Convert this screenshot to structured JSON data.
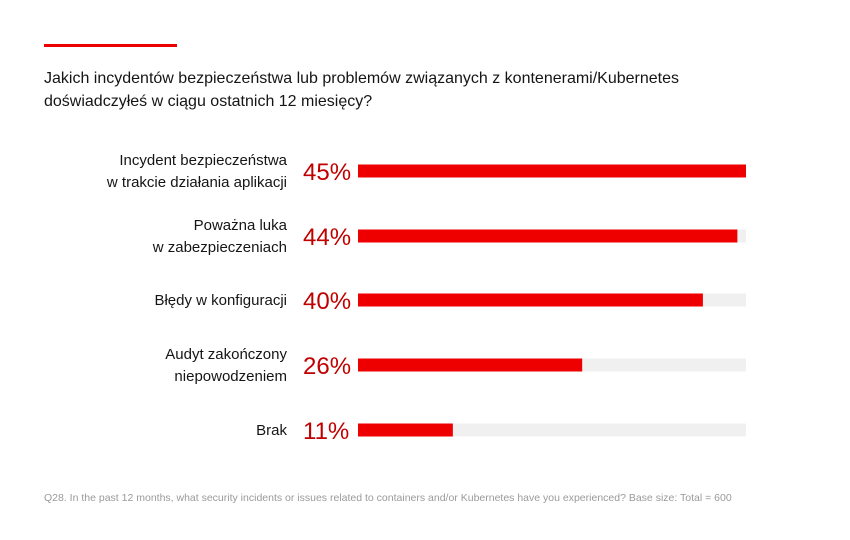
{
  "title": "Jakich incydentów bezpieczeństwa lub problemów związanych z kontenerami/Kubernetes\ndoświadczyłeś w ciągu ostatnich 12 miesięcy?",
  "footnote": "Q28. In the past 12 months, what security incidents or issues related to containers and/or Kubernetes have you experienced? Base size: Total = 600",
  "colors": {
    "accent": "#ee0000",
    "bar": "#ee0000",
    "track": "#f0f0f0",
    "value_text": "#c00000",
    "label_text": "#151515"
  },
  "chart_data": {
    "type": "bar",
    "orientation": "horizontal",
    "categories": [
      [
        "Incydent bezpieczeństwa",
        "w trakcie działania aplikacji"
      ],
      [
        "Poważna luka",
        "w zabezpieczeniach"
      ],
      [
        "Błędy w konfiguracji"
      ],
      [
        "Audyt zakończony",
        "niepowodzeniem"
      ],
      [
        "Brak"
      ]
    ],
    "values": [
      45,
      44,
      40,
      26,
      11
    ],
    "value_labels": [
      "45%",
      "44%",
      "40%",
      "26%",
      "11%"
    ],
    "xlim": [
      0,
      45
    ],
    "grid": false
  }
}
